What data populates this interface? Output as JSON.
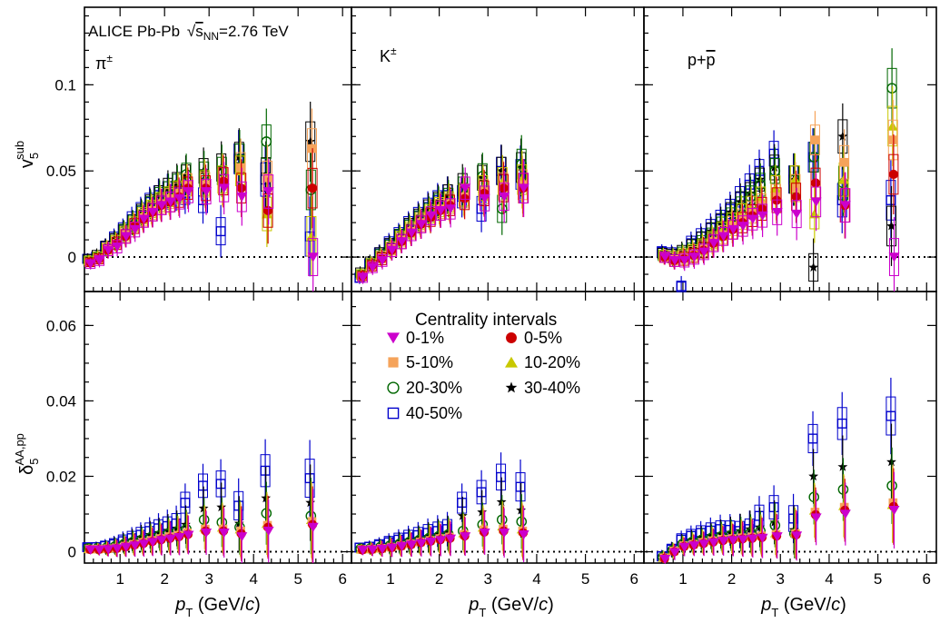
{
  "figure": {
    "header": "ALICE Pb-Pb",
    "energy_sqrt": "s",
    "energy_sub": "NN",
    "energy_value": "=2.76 TeV",
    "species": {
      "pi": "π",
      "pi_sup": "±",
      "k": "K",
      "k_sup": "±",
      "p": "p+",
      "pbar": "p"
    },
    "ylabel_top": {
      "sym": "v",
      "sub": "5",
      "sup": "sub"
    },
    "ylabel_bottom": {
      "sym": "δ",
      "sub": "5",
      "sup": "AA,pp"
    },
    "xlabel": {
      "sym": "p",
      "sub": "T",
      "rest": " (GeV/",
      "c": "c",
      "close": ")"
    },
    "legend_title": "Centrality intervals",
    "x_tick_labels": [
      "1",
      "2",
      "3",
      "4",
      "5",
      "6"
    ],
    "y_top_tick_labels": [
      "0",
      "0.05",
      "0.1"
    ],
    "y_bottom_tick_labels": [
      "0",
      "0.02",
      "0.04",
      "0.06"
    ]
  },
  "chart_data": {
    "type": "scatter",
    "x_axis": {
      "label": "p_T (GeV/c)",
      "range": [
        0.2,
        6.2
      ],
      "ticks": [
        1,
        2,
        3,
        4,
        5,
        6
      ]
    },
    "top_y_axis": {
      "label": "v5 sub",
      "range": [
        -0.02,
        0.145
      ],
      "ticks": [
        0,
        0.05,
        0.1
      ]
    },
    "bottom_y_axis": {
      "label": "δ5 AA,pp",
      "range": [
        -0.003,
        0.069
      ],
      "ticks": [
        0,
        0.02,
        0.04,
        0.06
      ]
    },
    "legend_placement": "bottom-middle panel, upper area",
    "series": [
      {
        "name": "0-1%",
        "marker": "triangle-down",
        "color": "#cc00cc"
      },
      {
        "name": "0-5%",
        "marker": "circle-filled",
        "color": "#cc0000"
      },
      {
        "name": "5-10%",
        "marker": "square-filled",
        "color": "#f5a35a"
      },
      {
        "name": "10-20%",
        "marker": "triangle-up",
        "color": "#c8c800"
      },
      {
        "name": "20-30%",
        "marker": "circle-open",
        "color": "#006600"
      },
      {
        "name": "30-40%",
        "marker": "star",
        "color": "#000000"
      },
      {
        "name": "40-50%",
        "marker": "square-open",
        "color": "#0000cc"
      }
    ],
    "panels": [
      {
        "row": "top",
        "species": "pi",
        "x": [
          0.3,
          0.5,
          0.7,
          0.9,
          1.1,
          1.3,
          1.5,
          1.7,
          1.9,
          2.1,
          2.3,
          2.5,
          2.9,
          3.3,
          3.7,
          4.3,
          5.3
        ],
        "values": {
          "0-1%": [
            -0.004,
            -0.002,
            0.004,
            0.006,
            0.012,
            0.016,
            0.022,
            0.026,
            0.03,
            0.032,
            0.034,
            0.038,
            0.038,
            0.04,
            0.035,
            0.038,
            0.0
          ],
          "0-5%": [
            -0.003,
            -0.001,
            0.004,
            0.008,
            0.012,
            0.018,
            0.022,
            0.026,
            0.03,
            0.032,
            0.035,
            0.04,
            0.04,
            0.044,
            0.04,
            0.027,
            0.04
          ],
          "5-10%": [
            -0.003,
            -0.001,
            0.005,
            0.008,
            0.013,
            0.018,
            0.023,
            0.027,
            0.031,
            0.034,
            0.037,
            0.042,
            0.042,
            0.044,
            0.052,
            0.046,
            0.063
          ],
          "10-20%": [
            -0.002,
            0.0,
            0.005,
            0.009,
            0.014,
            0.019,
            0.024,
            0.028,
            0.032,
            0.035,
            0.038,
            0.042,
            0.043,
            0.045,
            0.05,
            0.025,
            0.012
          ],
          "20-30%": [
            -0.002,
            0.0,
            0.005,
            0.009,
            0.015,
            0.02,
            0.025,
            0.03,
            0.035,
            0.038,
            0.042,
            0.048,
            0.048,
            0.05,
            0.057,
            0.067,
            0.039
          ],
          "30-40%": [
            -0.001,
            0.001,
            0.006,
            0.01,
            0.015,
            0.02,
            0.026,
            0.031,
            0.036,
            0.04,
            0.043,
            0.047,
            0.05,
            0.052,
            0.058,
            0.048,
            0.067
          ],
          "40-50%": [
            -0.001,
            0.0,
            0.006,
            0.011,
            0.016,
            0.022,
            0.027,
            0.032,
            0.036,
            0.038,
            0.038,
            0.037,
            0.033,
            0.015,
            0.057,
            0.045,
            0.012
          ]
        }
      },
      {
        "row": "top",
        "species": "K",
        "x": [
          0.4,
          0.6,
          0.8,
          1.0,
          1.2,
          1.4,
          1.6,
          1.8,
          2.0,
          2.2,
          2.5,
          2.9,
          3.3,
          3.7
        ],
        "values": {
          "0-1%": [
            -0.012,
            -0.006,
            -0.002,
            0.004,
            0.009,
            0.014,
            0.019,
            0.024,
            0.027,
            0.028,
            0.04,
            0.034,
            0.035,
            0.04
          ],
          "0-5%": [
            -0.011,
            -0.005,
            -0.001,
            0.004,
            0.009,
            0.014,
            0.019,
            0.023,
            0.027,
            0.03,
            0.034,
            0.037,
            0.04,
            0.04
          ],
          "5-10%": [
            -0.011,
            -0.005,
            0.0,
            0.005,
            0.01,
            0.015,
            0.02,
            0.024,
            0.028,
            0.031,
            0.035,
            0.038,
            0.041,
            0.042
          ],
          "10-20%": [
            -0.01,
            -0.004,
            0.0,
            0.005,
            0.011,
            0.016,
            0.021,
            0.025,
            0.029,
            0.032,
            0.036,
            0.04,
            0.044,
            0.045
          ],
          "20-30%": [
            -0.01,
            -0.004,
            0.001,
            0.006,
            0.012,
            0.017,
            0.022,
            0.026,
            0.031,
            0.034,
            0.04,
            0.047,
            0.028,
            0.054
          ],
          "30-40%": [
            -0.009,
            -0.003,
            0.002,
            0.007,
            0.012,
            0.018,
            0.023,
            0.028,
            0.032,
            0.036,
            0.042,
            0.046,
            0.05,
            0.052
          ],
          "40-50%": [
            -0.012,
            -0.004,
            0.002,
            0.008,
            0.013,
            0.019,
            0.024,
            0.029,
            0.033,
            0.036,
            0.035,
            0.028,
            0.05,
            0.048
          ]
        }
      },
      {
        "row": "top",
        "species": "p",
        "x": [
          0.6,
          0.8,
          1.0,
          1.2,
          1.4,
          1.6,
          1.8,
          2.0,
          2.2,
          2.4,
          2.6,
          2.9,
          3.3,
          3.7,
          4.3,
          5.3
        ],
        "values": {
          "0-1%": [
            0.0,
            -0.002,
            -0.002,
            0.0,
            0.003,
            0.008,
            0.012,
            0.016,
            0.018,
            0.022,
            0.024,
            0.026,
            0.025,
            0.032,
            0.03,
            0.0
          ],
          "0-5%": [
            0.0,
            -0.002,
            -0.001,
            0.001,
            0.004,
            0.008,
            0.012,
            0.016,
            0.02,
            0.024,
            0.028,
            0.033,
            0.035,
            0.043,
            0.03,
            0.048
          ],
          "5-10%": [
            0.0,
            -0.001,
            0.0,
            0.002,
            0.005,
            0.009,
            0.013,
            0.018,
            0.022,
            0.026,
            0.03,
            0.035,
            0.04,
            0.068,
            0.055,
            0.068
          ],
          "10-20%": [
            0.001,
            0.0,
            0.001,
            0.003,
            0.006,
            0.01,
            0.015,
            0.02,
            0.025,
            0.029,
            0.034,
            0.04,
            0.045,
            0.025,
            0.045,
            0.076
          ],
          "20-30%": [
            0.001,
            0.0,
            0.002,
            0.004,
            0.008,
            0.012,
            0.018,
            0.023,
            0.029,
            0.035,
            0.042,
            0.05,
            0.045,
            0.058,
            0.043,
            0.098
          ],
          "30-40%": [
            0.002,
            0.001,
            0.003,
            0.006,
            0.01,
            0.015,
            0.02,
            0.026,
            0.032,
            0.037,
            0.045,
            0.052,
            0.045,
            -0.006,
            0.07,
            0.018
          ],
          "40-50%": [
            0.003,
            0.002,
            -0.017,
            0.008,
            0.012,
            0.017,
            0.022,
            0.028,
            0.035,
            0.042,
            0.05,
            0.06,
            0.045,
            0.058,
            0.033,
            0.033
          ]
        }
      },
      {
        "row": "bottom",
        "species": "pi",
        "x": [
          0.3,
          0.5,
          0.7,
          0.9,
          1.1,
          1.3,
          1.5,
          1.7,
          1.9,
          2.1,
          2.3,
          2.5,
          2.9,
          3.3,
          3.7,
          4.3,
          5.3
        ],
        "values": {
          "0-1%": [
            0.0005,
            0.0005,
            0.0006,
            0.0008,
            0.0012,
            0.0016,
            0.002,
            0.0025,
            0.003,
            0.0034,
            0.0038,
            0.0044,
            0.005,
            0.005,
            0.004,
            0.0055,
            0.0065
          ],
          "0-5%": [
            0.0006,
            0.0006,
            0.0007,
            0.0009,
            0.0013,
            0.0018,
            0.0022,
            0.0027,
            0.0032,
            0.0036,
            0.004,
            0.0046,
            0.0055,
            0.0055,
            0.0048,
            0.0065,
            0.0072
          ],
          "5-10%": [
            0.0007,
            0.0007,
            0.0008,
            0.001,
            0.0015,
            0.002,
            0.0025,
            0.003,
            0.0035,
            0.004,
            0.0044,
            0.005,
            0.006,
            0.006,
            0.0055,
            0.007,
            0.008
          ],
          "10-20%": [
            0.0008,
            0.0008,
            0.0009,
            0.0012,
            0.0017,
            0.0022,
            0.0028,
            0.0033,
            0.0038,
            0.0043,
            0.0048,
            0.0055,
            0.0065,
            0.0065,
            0.006,
            0.0075,
            0.0085
          ],
          "20-30%": [
            0.0009,
            0.0009,
            0.001,
            0.0014,
            0.002,
            0.0026,
            0.0032,
            0.0038,
            0.0043,
            0.0048,
            0.0054,
            0.006,
            0.0085,
            0.0078,
            0.0065,
            0.0102,
            0.0095
          ],
          "30-40%": [
            0.001,
            0.001,
            0.0012,
            0.0017,
            0.0024,
            0.0031,
            0.0038,
            0.0045,
            0.005,
            0.0056,
            0.0062,
            0.0072,
            0.0115,
            0.0118,
            0.0075,
            0.0142,
            0.013
          ],
          "40-50%": [
            0.0012,
            0.0012,
            0.0015,
            0.002,
            0.0028,
            0.0036,
            0.0045,
            0.0055,
            0.0062,
            0.0068,
            0.0075,
            0.013,
            0.0175,
            0.018,
            0.0122,
            0.0215,
            0.0195
          ]
        }
      },
      {
        "row": "bottom",
        "species": "K",
        "x": [
          0.4,
          0.6,
          0.8,
          1.0,
          1.2,
          1.4,
          1.6,
          1.8,
          2.0,
          2.2,
          2.5,
          2.9,
          3.3,
          3.7
        ],
        "values": {
          "0-1%": [
            0.0004,
            0.0005,
            0.0007,
            0.001,
            0.0014,
            0.0018,
            0.0022,
            0.0026,
            0.003,
            0.0034,
            0.004,
            0.005,
            0.005,
            0.0045
          ],
          "0-5%": [
            0.0005,
            0.0006,
            0.0008,
            0.0011,
            0.0015,
            0.0019,
            0.0024,
            0.0028,
            0.0032,
            0.0036,
            0.0042,
            0.0052,
            0.0055,
            0.005
          ],
          "5-10%": [
            0.0006,
            0.0007,
            0.0009,
            0.0012,
            0.0016,
            0.0021,
            0.0026,
            0.003,
            0.0035,
            0.0039,
            0.0046,
            0.0058,
            0.006,
            0.0055
          ],
          "10-20%": [
            0.0007,
            0.0008,
            0.001,
            0.0014,
            0.0018,
            0.0023,
            0.0028,
            0.0033,
            0.0038,
            0.0042,
            0.005,
            0.0065,
            0.0068,
            0.006
          ],
          "20-30%": [
            0.0008,
            0.0009,
            0.0012,
            0.0016,
            0.0021,
            0.0026,
            0.0031,
            0.0036,
            0.0041,
            0.0046,
            0.0055,
            0.0072,
            0.0085,
            0.008
          ],
          "30-40%": [
            0.0009,
            0.001,
            0.0014,
            0.0019,
            0.0025,
            0.003,
            0.0035,
            0.004,
            0.0045,
            0.005,
            0.0095,
            0.0105,
            0.0132,
            0.011
          ],
          "40-50%": [
            0.0011,
            0.0013,
            0.0018,
            0.0025,
            0.0032,
            0.0038,
            0.0044,
            0.005,
            0.0055,
            0.006,
            0.013,
            0.0158,
            0.0198,
            0.0172
          ]
        }
      },
      {
        "row": "bottom",
        "species": "p",
        "x": [
          0.6,
          0.8,
          1.0,
          1.2,
          1.4,
          1.6,
          1.8,
          2.0,
          2.2,
          2.4,
          2.6,
          2.9,
          3.3,
          3.7,
          4.3,
          5.3
        ],
        "values": {
          "0-1%": [
            -0.002,
            -0.0002,
            0.0012,
            0.0016,
            0.002,
            0.0024,
            0.0028,
            0.003,
            0.0032,
            0.0034,
            0.0036,
            0.004,
            0.0042,
            0.009,
            0.01,
            0.011
          ],
          "0-5%": [
            -0.0018,
            0.0,
            0.0014,
            0.0018,
            0.0022,
            0.0026,
            0.003,
            0.0032,
            0.0034,
            0.0036,
            0.0038,
            0.0042,
            0.0045,
            0.0098,
            0.011,
            0.012
          ],
          "5-10%": [
            -0.0016,
            0.0002,
            0.0016,
            0.002,
            0.0025,
            0.0029,
            0.0033,
            0.0035,
            0.0037,
            0.0039,
            0.0042,
            0.0046,
            0.0048,
            0.0105,
            0.0118,
            0.013
          ],
          "10-20%": [
            -0.0015,
            0.0003,
            0.0018,
            0.0023,
            0.0028,
            0.0032,
            0.0036,
            0.0038,
            0.004,
            0.0043,
            0.0046,
            0.005,
            0.0052,
            0.011,
            0.0122,
            0.0125
          ],
          "20-30%": [
            -0.0014,
            0.0004,
            0.002,
            0.0026,
            0.0032,
            0.0037,
            0.0041,
            0.0044,
            0.0047,
            0.005,
            0.0055,
            0.007,
            0.0048,
            0.0145,
            0.0165,
            0.0175
          ],
          "30-40%": [
            -0.0013,
            0.0005,
            0.0023,
            0.003,
            0.0037,
            0.0042,
            0.0047,
            0.0051,
            0.0055,
            0.006,
            0.0065,
            0.0078,
            0.0058,
            0.02,
            0.0225,
            0.0238
          ],
          "40-50%": [
            -0.0012,
            0.0006,
            0.0032,
            0.0042,
            0.005,
            0.0056,
            0.006,
            0.0058,
            0.0055,
            0.006,
            0.0095,
            0.0118,
            0.0088,
            0.03,
            0.034,
            0.036
          ]
        }
      }
    ]
  }
}
